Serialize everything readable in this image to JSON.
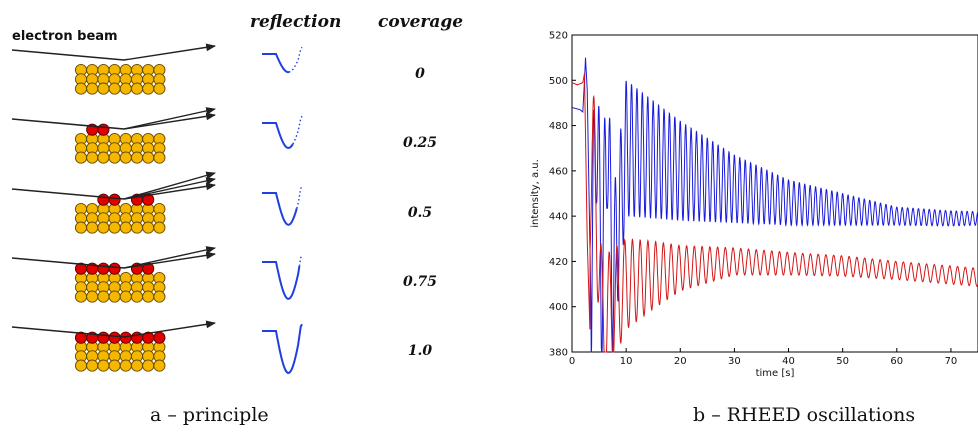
{
  "panel_a": {
    "labels": {
      "electron_beam": "electron beam",
      "reflection": "reflection",
      "coverage": "coverage"
    },
    "rows": [
      {
        "coverage": "0",
        "adatoms": []
      },
      {
        "coverage": "0.25",
        "adatoms": [
          1,
          2
        ]
      },
      {
        "coverage": "0.5",
        "adatoms": [
          2,
          3,
          5,
          6
        ]
      },
      {
        "coverage": "0.75",
        "adatoms": [
          0,
          1,
          2,
          3,
          5,
          6
        ]
      },
      {
        "coverage": "1.0",
        "adatoms": [
          0,
          1,
          2,
          3,
          4,
          5,
          6,
          7
        ]
      }
    ],
    "reflection_depth": [
      0.3,
      0.5,
      0.7,
      0.85,
      1.0
    ],
    "colors": {
      "substrate": "#f5b800",
      "adatom": "#e00000",
      "beam": "#222222",
      "reflection": "#1f3fe0"
    }
  },
  "captions": {
    "a": "a – principle",
    "b": "b – RHEED oscillations"
  },
  "chart_data": {
    "type": "line",
    "title": "",
    "xlabel": "time [s]",
    "ylabel": "intensity, a.u.",
    "xlim": [
      0,
      75
    ],
    "ylim": [
      380,
      520
    ],
    "xticks": [
      0,
      10,
      20,
      30,
      40,
      50,
      60,
      70
    ],
    "yticks": [
      380,
      400,
      420,
      440,
      460,
      480,
      500,
      520
    ],
    "grid": false,
    "series": [
      {
        "color": "#1a1adc",
        "period_s": 1.0,
        "points": [
          [
            0,
            488
          ],
          [
            1.5,
            487
          ],
          [
            2.0,
            486
          ],
          [
            2.3,
            500
          ],
          [
            2.5,
            510
          ],
          [
            2.8,
            496
          ],
          [
            3.5,
            402
          ],
          [
            4.5,
            487
          ],
          [
            5.5,
            409
          ],
          [
            6.5,
            481
          ],
          [
            7.5,
            412
          ],
          [
            10,
            470
          ],
          [
            15,
            465
          ],
          [
            20,
            460
          ],
          [
            30,
            452
          ],
          [
            40,
            446
          ],
          [
            50,
            443
          ],
          [
            60,
            440
          ],
          [
            70,
            439
          ],
          [
            75,
            439
          ]
        ],
        "amplitude_envelope": [
          [
            3,
            42
          ],
          [
            10,
            30
          ],
          [
            20,
            22
          ],
          [
            30,
            15
          ],
          [
            40,
            10
          ],
          [
            50,
            7
          ],
          [
            60,
            4
          ],
          [
            75,
            3
          ]
        ]
      },
      {
        "color": "#d41616",
        "period_s": 1.43,
        "points": [
          [
            0,
            499
          ],
          [
            1,
            498
          ],
          [
            2.0,
            499
          ],
          [
            2.3,
            503
          ],
          [
            2.8,
            430
          ],
          [
            3.3,
            390
          ],
          [
            4.3,
            460
          ],
          [
            5.5,
            392
          ],
          [
            10,
            410
          ],
          [
            15,
            414
          ],
          [
            20,
            417
          ],
          [
            30,
            420
          ],
          [
            40,
            419
          ],
          [
            50,
            418
          ],
          [
            60,
            416
          ],
          [
            70,
            414
          ],
          [
            75,
            413
          ]
        ],
        "amplitude_envelope": [
          [
            3,
            35
          ],
          [
            10,
            20
          ],
          [
            20,
            10
          ],
          [
            30,
            6
          ],
          [
            40,
            5
          ],
          [
            60,
            4
          ],
          [
            75,
            4
          ]
        ]
      }
    ]
  }
}
